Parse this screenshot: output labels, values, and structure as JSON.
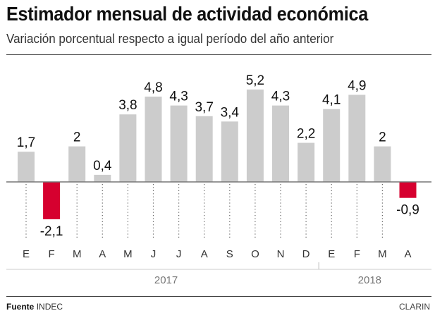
{
  "header": {
    "title": "Estimador mensual de actividad económica",
    "subtitle": "Variación porcentual respecto a igual período del año anterior"
  },
  "footer": {
    "source_label": "Fuente",
    "source_value": "INDEC",
    "brand": "CLARIN"
  },
  "colors": {
    "positive": "#cccccc",
    "negative": "#d6002f",
    "axis": "#777777"
  },
  "chart_data": {
    "type": "bar",
    "title": "Estimador mensual de actividad económica",
    "subtitle": "Variación porcentual respecto a igual período del año anterior",
    "xlabel": "",
    "ylabel": "",
    "categories": [
      "E",
      "F",
      "M",
      "A",
      "M",
      "J",
      "J",
      "A",
      "S",
      "O",
      "N",
      "D",
      "E",
      "F",
      "M",
      "A"
    ],
    "values": [
      1.7,
      -2.1,
      2,
      0.4,
      3.8,
      4.8,
      4.3,
      3.7,
      3.4,
      5.2,
      4.3,
      2.2,
      4.1,
      4.9,
      2,
      -0.9
    ],
    "value_labels": [
      "1,7",
      "-2,1",
      "2",
      "0,4",
      "3,8",
      "4,8",
      "4,3",
      "3,7",
      "3,4",
      "5,2",
      "4,3",
      "2,2",
      "4,1",
      "4,9",
      "2",
      "-0,9"
    ],
    "year_groups": [
      {
        "label": "2017",
        "start": 0,
        "end": 11
      },
      {
        "label": "2018",
        "start": 12,
        "end": 15
      }
    ],
    "ylim": [
      -2.1,
      5.2
    ],
    "grid": false,
    "legend": "none"
  }
}
